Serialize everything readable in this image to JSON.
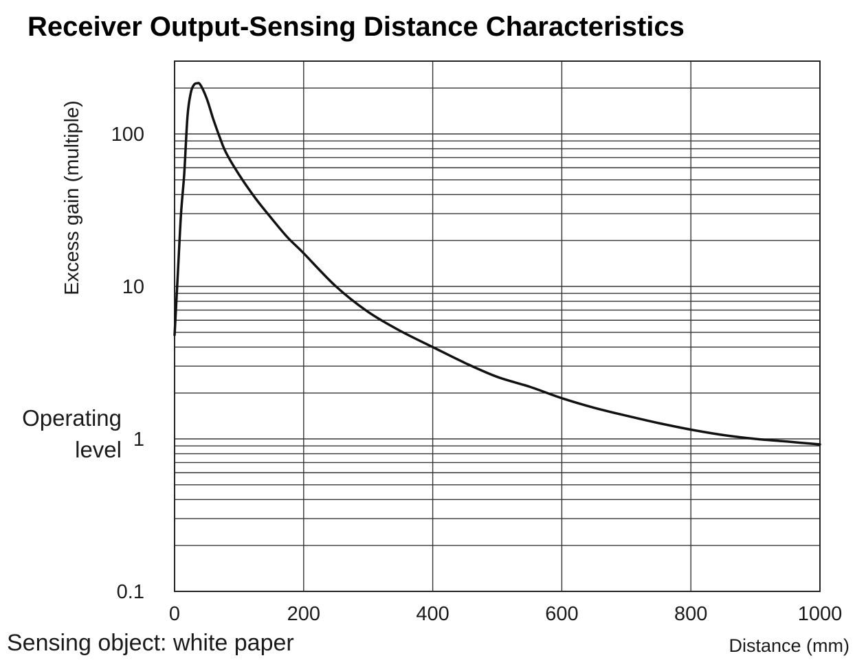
{
  "chart_data": {
    "type": "line",
    "title": "Receiver Output-Sensing Distance Characteristics",
    "xlabel": "Distance (mm)",
    "ylabel": "Excess gain (multiple)",
    "xscale": "linear",
    "yscale": "log",
    "xlim": [
      0,
      1000
    ],
    "ylim": [
      0.1,
      300
    ],
    "x_ticks": [
      "0",
      "200",
      "400",
      "600",
      "800",
      "1000"
    ],
    "y_ticks": [
      "0.1",
      "1",
      "10",
      "100"
    ],
    "grid": true,
    "annotation": "Operating level",
    "footnote": "Sensing object: white paper",
    "series": [
      {
        "name": "Excess gain",
        "x": [
          0,
          5,
          10,
          15,
          20,
          25,
          30,
          35,
          40,
          50,
          60,
          70,
          80,
          100,
          125,
          150,
          175,
          200,
          250,
          300,
          350,
          400,
          450,
          500,
          550,
          600,
          650,
          700,
          750,
          800,
          850,
          900,
          950,
          1000
        ],
        "y": [
          4.8,
          12,
          30,
          55,
          130,
          185,
          210,
          215,
          210,
          170,
          125,
          95,
          75,
          54,
          38,
          28,
          21,
          16.5,
          10,
          6.8,
          5.1,
          4.0,
          3.15,
          2.55,
          2.2,
          1.85,
          1.6,
          1.42,
          1.27,
          1.15,
          1.06,
          1.0,
          0.96,
          0.92
        ]
      }
    ]
  }
}
